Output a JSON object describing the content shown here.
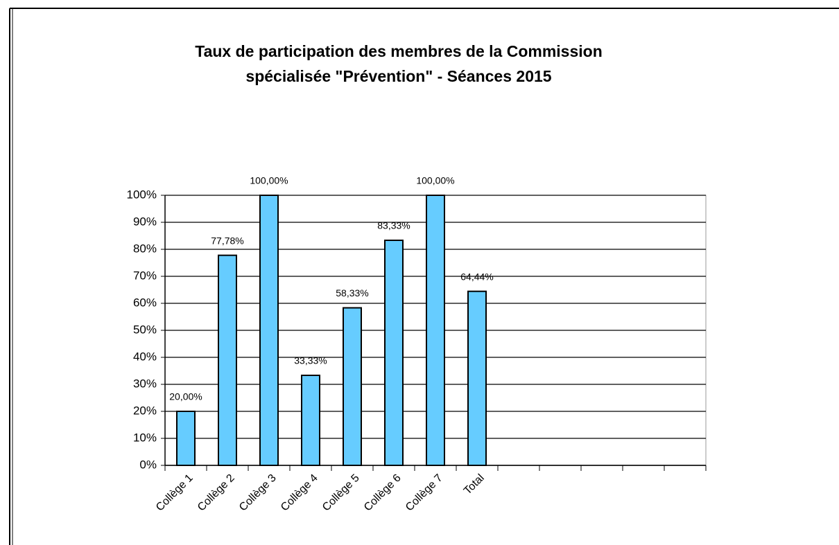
{
  "chart_data": {
    "type": "bar",
    "title": [
      "Taux de participation des membres de la Commission",
      "spécialisée \"Prévention\" - Séances 2015"
    ],
    "categories": [
      "Collège 1",
      "Collège 2",
      "Collège 3",
      "Collège 4",
      "Collège 5",
      "Collège 6",
      "Collège 7",
      "Total",
      null,
      null,
      null,
      null,
      null
    ],
    "values": [
      20,
      77.78,
      100,
      33.33,
      58.33,
      83.33,
      100,
      64.44,
      null,
      null,
      null,
      null,
      null
    ],
    "value_labels": [
      "20,00%",
      "77,78%",
      "100,00%",
      "33,33%",
      "58,33%",
      "83,33%",
      "100,00%",
      "64,44%",
      null,
      null,
      null,
      null,
      null
    ],
    "color": "#66ccff",
    "ylim": [
      0,
      100
    ],
    "yticks": [
      {
        "value": 0,
        "label": "0%"
      },
      {
        "value": 10,
        "label": "10%"
      },
      {
        "value": 20,
        "label": "20%"
      },
      {
        "value": 30,
        "label": "30%"
      },
      {
        "value": 40,
        "label": "40%"
      },
      {
        "value": 50,
        "label": "50%"
      },
      {
        "value": 60,
        "label": "60%"
      },
      {
        "value": 70,
        "label": "70%"
      },
      {
        "value": 80,
        "label": "80%"
      },
      {
        "value": 90,
        "label": "90%"
      },
      {
        "value": 100,
        "label": "100%"
      }
    ],
    "grid": true
  }
}
